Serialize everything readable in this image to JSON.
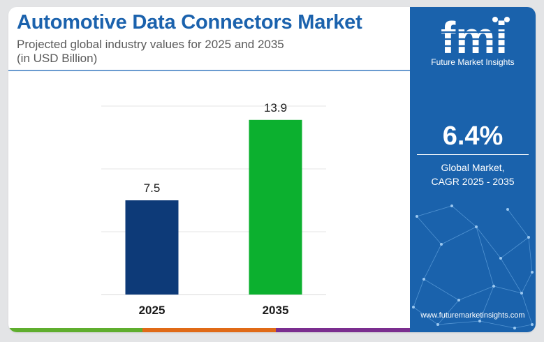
{
  "header": {
    "title": "Automotive Data Connectors Market",
    "subtitle_line1": "Projected global industry values for 2025 and 2035",
    "subtitle_line2": "(in USD Billion)"
  },
  "chart_data": {
    "type": "bar",
    "categories": [
      "2025",
      "2035"
    ],
    "values": [
      7.5,
      13.9
    ],
    "value_labels": [
      "7.5",
      "13.9"
    ],
    "bar_colors": [
      "#0d3a78",
      "#0cb02f"
    ],
    "ylim": [
      0,
      15
    ],
    "grid": true,
    "title": "",
    "xlabel": "",
    "ylabel": ""
  },
  "accent_colors": {
    "brand_blue": "#1a62ac",
    "title_blue": "#1b62ad",
    "bar_green": "#0cb02f",
    "bar_navy": "#0d3a78"
  },
  "bottom_bar_colors": [
    "#5fae2e",
    "#e06a17",
    "#7b2e8f"
  ],
  "sidebar": {
    "logo_text": "fmi",
    "logo_subtitle": "Future Market Insights",
    "cagr_value": "6.4%",
    "cagr_label_line1": "Global Market,",
    "cagr_label_line2": "CAGR 2025 - 2035",
    "website": "www.futuremarketinsights.com"
  }
}
